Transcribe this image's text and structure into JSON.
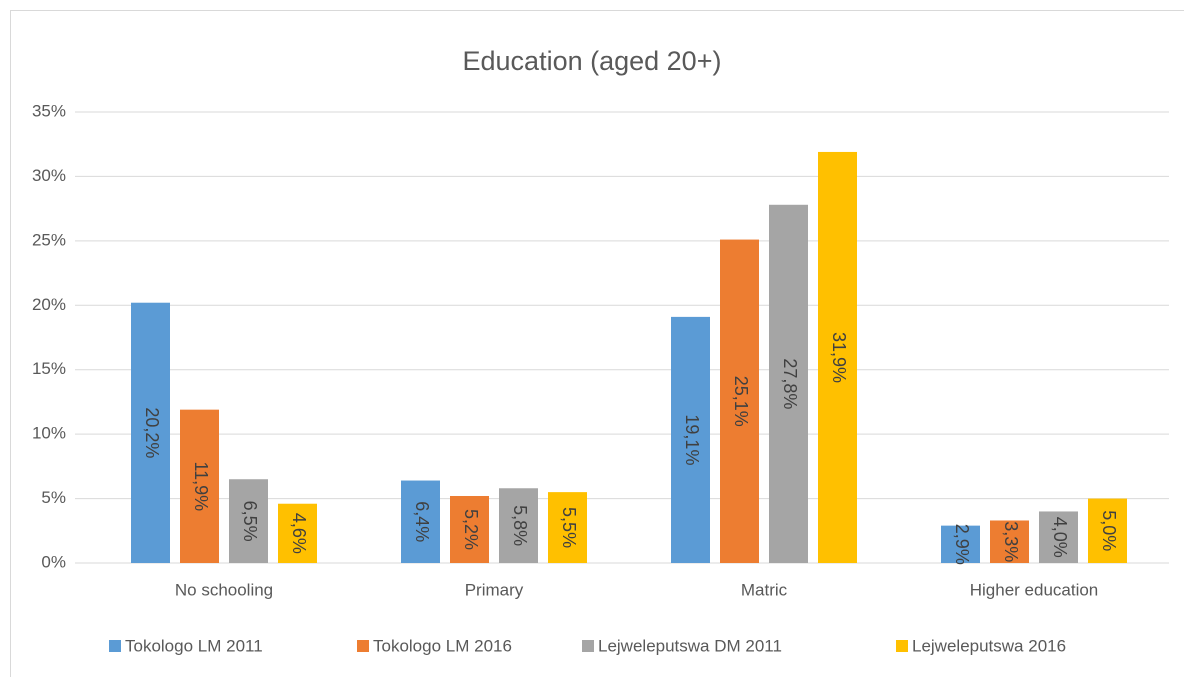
{
  "chart_data": {
    "type": "bar",
    "title": "Education (aged 20+)",
    "categories": [
      "No schooling",
      "Primary",
      "Matric",
      "Higher education"
    ],
    "series": [
      {
        "name": "Tokologo LM 2011",
        "color": "#5b9bd5",
        "values": [
          20.2,
          6.4,
          19.1,
          2.9
        ],
        "value_labels": [
          "20,2%",
          "6,4%",
          "19,1%",
          "2,9%"
        ]
      },
      {
        "name": "Tokologo LM 2016",
        "color": "#ed7d31",
        "values": [
          11.9,
          5.2,
          25.1,
          3.3
        ],
        "value_labels": [
          "11,9%",
          "5,2%",
          "25,1%",
          "3,3%"
        ]
      },
      {
        "name": "Lejweleputswa DM 2011",
        "color": "#a5a5a5",
        "values": [
          6.5,
          5.8,
          27.8,
          4.0
        ],
        "value_labels": [
          "6,5%",
          "5,8%",
          "27,8%",
          "4,0%"
        ]
      },
      {
        "name": "Lejweleputswa 2016",
        "color": "#ffc000",
        "values": [
          4.6,
          5.5,
          31.9,
          5.0
        ],
        "value_labels": [
          "4,6%",
          "5,5%",
          "31,9%",
          "5,0%"
        ]
      }
    ],
    "ylim": [
      0,
      35
    ],
    "yticks": [
      {
        "value": 0,
        "label": "0%"
      },
      {
        "value": 5,
        "label": "5%"
      },
      {
        "value": 10,
        "label": "10%"
      },
      {
        "value": 15,
        "label": "15%"
      },
      {
        "value": 20,
        "label": "20%"
      },
      {
        "value": 25,
        "label": "25%"
      },
      {
        "value": 30,
        "label": "30%"
      },
      {
        "value": 35,
        "label": "35%"
      }
    ],
    "grid": true,
    "legend": "bottom"
  }
}
